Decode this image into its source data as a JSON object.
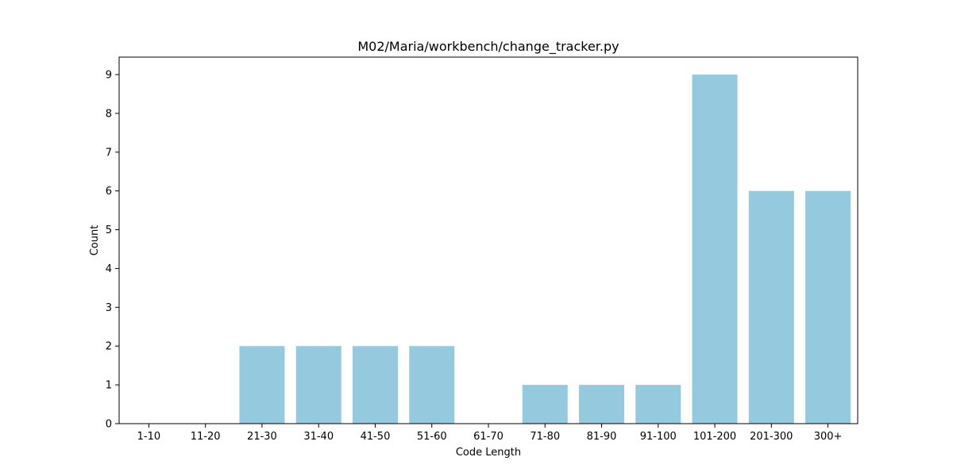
{
  "chart_data": {
    "type": "bar",
    "title": "M02/Maria/workbench/change_tracker.py",
    "xlabel": "Code Length",
    "ylabel": "Count",
    "categories": [
      "1-10",
      "11-20",
      "21-30",
      "31-40",
      "41-50",
      "51-60",
      "61-70",
      "71-80",
      "81-90",
      "91-100",
      "101-200",
      "201-300",
      "300+"
    ],
    "values": [
      0,
      0,
      2,
      2,
      2,
      2,
      0,
      1,
      1,
      1,
      9,
      6,
      6
    ],
    "ylim": [
      0,
      9.45
    ],
    "yticks": [
      0,
      1,
      2,
      3,
      4,
      5,
      6,
      7,
      8,
      9
    ],
    "bar_color": "#95c9de",
    "grid": false,
    "legend": "none"
  }
}
